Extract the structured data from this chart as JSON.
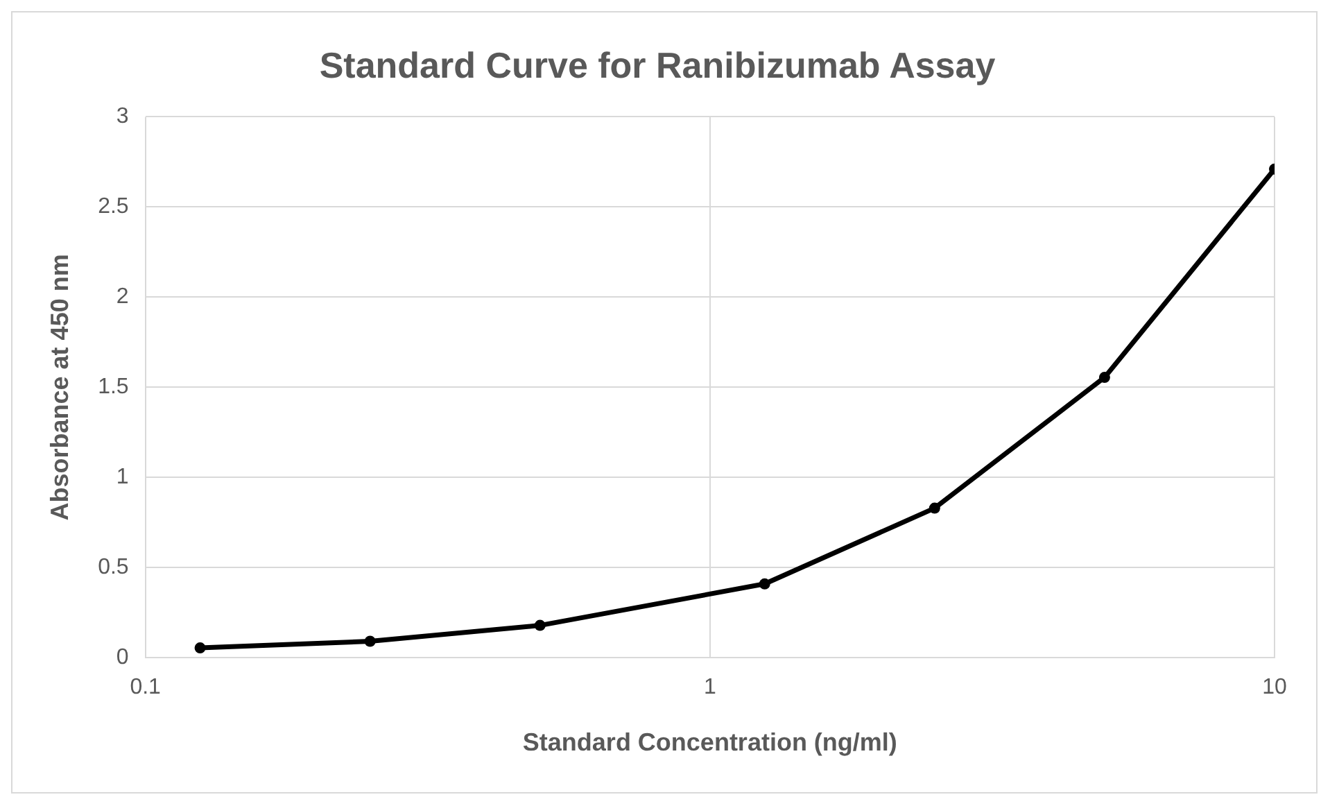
{
  "chart_data": {
    "type": "line",
    "title": "Standard Curve for Ranibizumab Assay",
    "xlabel": "Standard Concentration (ng/ml)",
    "ylabel": "Absorbance at 450 nm",
    "x": [
      0.125,
      0.25,
      0.5,
      1.25,
      2.5,
      5,
      10
    ],
    "series": [
      {
        "color": "#000000",
        "values": [
          0.055,
          0.092,
          0.18,
          0.41,
          0.83,
          1.555,
          2.71
        ]
      }
    ],
    "log": "x",
    "xlim": [
      0.1,
      10
    ],
    "xticks": [
      0.1,
      1,
      10
    ],
    "ylim": [
      0,
      3
    ],
    "yticks": [
      0,
      0.5,
      1,
      1.5,
      2,
      2.5,
      3
    ],
    "grid": true,
    "marker": "circle",
    "line_style": "solid",
    "legend": false
  }
}
